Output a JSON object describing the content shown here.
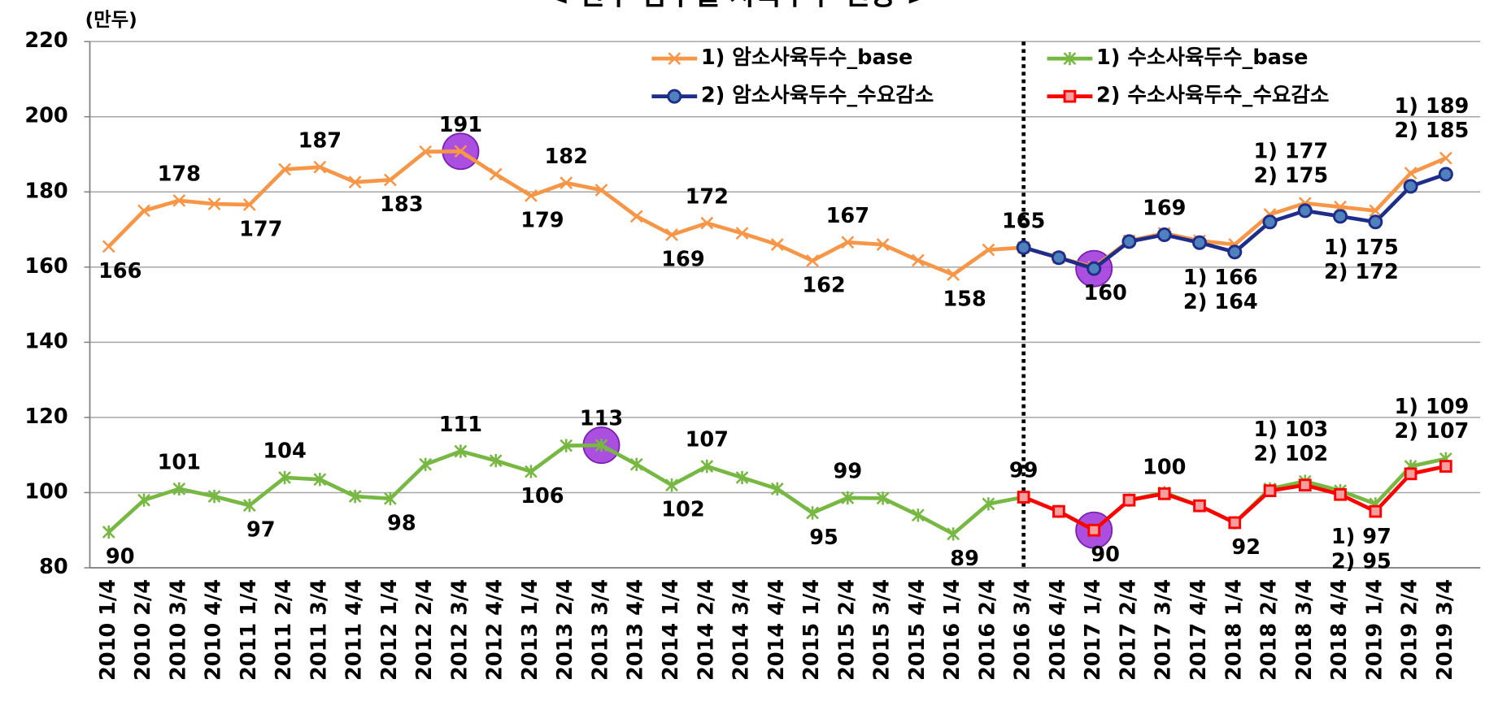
{
  "chart_data": {
    "type": "line",
    "title": "< 한우 암수별 사육두수 전망 >",
    "y_unit": "(만두)",
    "categories": [
      "2010 1/4",
      "2010 2/4",
      "2010 3/4",
      "2010 4/4",
      "2011 1/4",
      "2011 2/4",
      "2011 3/4",
      "2011 4/4",
      "2012 1/4",
      "2012 2/4",
      "2012 3/4",
      "2012 4/4",
      "2013 1/4",
      "2013 2/4",
      "2013 3/4",
      "2013 4/4",
      "2014 1/4",
      "2014 2/4",
      "2014 3/4",
      "2014 4/4",
      "2015 1/4",
      "2015 2/4",
      "2015 3/4",
      "2015 4/4",
      "2016 1/4",
      "2016 2/4",
      "2016 3/4",
      "2016 4/4",
      "2017 1/4",
      "2017 2/4",
      "2017 3/4",
      "2017 4/4",
      "2018 1/4",
      "2018 2/4",
      "2018 3/4",
      "2018 4/4",
      "2019 1/4",
      "2019 2/4",
      "2019 3/4"
    ],
    "series": [
      {
        "name": "1) 암소사육두수_base",
        "color": "#f79646",
        "marker": "x",
        "values": [
          165.5,
          175,
          177.7,
          176.8,
          176.6,
          186,
          186.6,
          182.6,
          183.2,
          190.7,
          190.8,
          184.7,
          179,
          182.4,
          180.5,
          173.5,
          168.6,
          171.7,
          169,
          166,
          161.7,
          166.6,
          166,
          161.8,
          158,
          164.6,
          165.2,
          162.5,
          160,
          167,
          169,
          167,
          166,
          174,
          177,
          176,
          175,
          185,
          189
        ],
        "value_labels": [
          "166",
          null,
          "178",
          null,
          "177",
          null,
          "187",
          null,
          "183",
          null,
          "191",
          null,
          "179",
          "182",
          null,
          null,
          "169",
          "172",
          null,
          null,
          "162",
          "167",
          null,
          null,
          "158",
          null,
          "165",
          null,
          null,
          null,
          null,
          null,
          "1) 166",
          null,
          "1) 177",
          null,
          "1) 175",
          null,
          "1) 189"
        ]
      },
      {
        "name": "1) 수소사육두수_base",
        "color": "#77b843",
        "marker": "asterisk",
        "values": [
          89.5,
          98,
          101,
          99,
          96.6,
          104,
          103.5,
          99,
          98.4,
          107.5,
          111,
          108.5,
          105.6,
          112.5,
          112.6,
          107.5,
          102,
          107,
          104,
          101,
          94.6,
          98.6,
          98.5,
          94,
          89,
          97,
          98.8,
          95,
          90,
          98,
          100,
          96.5,
          92,
          101,
          103,
          100.5,
          97,
          107,
          109
        ],
        "value_labels": [
          "90",
          null,
          "101",
          null,
          "97",
          "104",
          null,
          null,
          "98",
          null,
          "111",
          null,
          "106",
          null,
          "113",
          null,
          "102",
          "107",
          null,
          null,
          "95",
          "99",
          null,
          null,
          "89",
          null,
          "99",
          null,
          null,
          null,
          null,
          null,
          null,
          null,
          "1) 103",
          null,
          "1) 97",
          null,
          "1) 109"
        ]
      },
      {
        "name": "2) 암소사육두수_수요감소",
        "color": "#1f2d8a",
        "marker_fill": "#4f81bd",
        "marker": "circle",
        "values": [
          null,
          null,
          null,
          null,
          null,
          null,
          null,
          null,
          null,
          null,
          null,
          null,
          null,
          null,
          null,
          null,
          null,
          null,
          null,
          null,
          null,
          null,
          null,
          null,
          null,
          null,
          165.2,
          162.5,
          159.6,
          166.8,
          168.6,
          166.5,
          164,
          172,
          175,
          173.5,
          172,
          181.5,
          184.7
        ],
        "value_labels": [
          null,
          null,
          null,
          null,
          null,
          null,
          null,
          null,
          null,
          null,
          null,
          null,
          null,
          null,
          null,
          null,
          null,
          null,
          null,
          null,
          null,
          null,
          null,
          null,
          null,
          null,
          null,
          null,
          "160",
          null,
          "169",
          null,
          "2) 164",
          null,
          "2) 175",
          null,
          "2) 172",
          null,
          "2) 185"
        ]
      },
      {
        "name": "2) 수소사육두수_수요감소",
        "color": "#ff0000",
        "marker_fill": "#f4a0a0",
        "marker": "square",
        "values": [
          null,
          null,
          null,
          null,
          null,
          null,
          null,
          null,
          null,
          null,
          null,
          null,
          null,
          null,
          null,
          null,
          null,
          null,
          null,
          null,
          null,
          null,
          null,
          null,
          null,
          null,
          98.8,
          95,
          90,
          98,
          99.7,
          96.5,
          92,
          100.5,
          102,
          99.5,
          95,
          105,
          107
        ],
        "value_labels": [
          null,
          null,
          null,
          null,
          null,
          null,
          null,
          null,
          null,
          null,
          null,
          null,
          null,
          null,
          null,
          null,
          null,
          null,
          null,
          null,
          null,
          null,
          null,
          null,
          null,
          null,
          null,
          null,
          "90",
          null,
          "100",
          null,
          "92",
          null,
          "2) 102",
          null,
          "2) 95",
          null,
          "2) 107"
        ]
      }
    ],
    "ylim": [
      80,
      220
    ],
    "yticks": [
      80,
      100,
      120,
      140,
      160,
      180,
      200,
      220
    ],
    "grid": true,
    "legend": "upper right"
  }
}
